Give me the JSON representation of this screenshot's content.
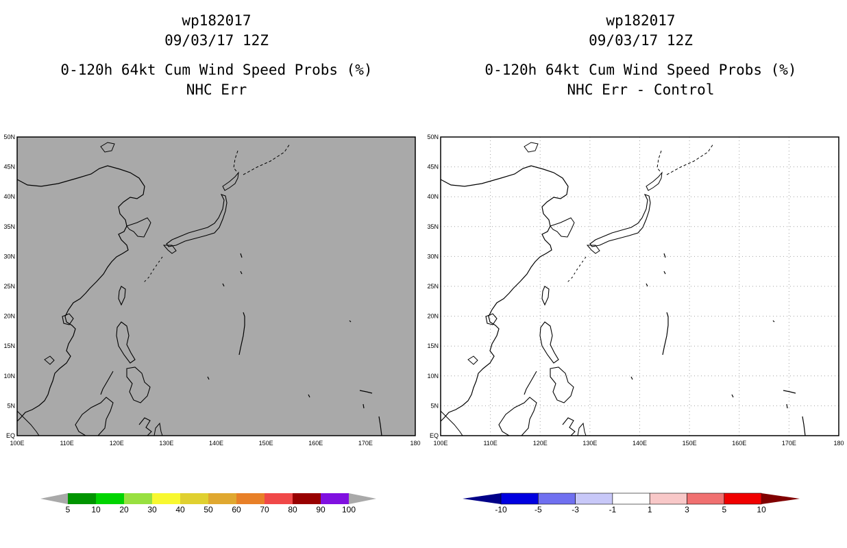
{
  "left_panel": {
    "title_lines": [
      "wp182017",
      "09/03/17 12Z",
      "0-120h 64kt Cum Wind Speed Probs (%)",
      "NHC Err"
    ],
    "background_color": "#a9a9a9"
  },
  "right_panel": {
    "title_lines": [
      "wp182017",
      "09/03/17 12Z",
      "0-120h 64kt Cum Wind Speed Probs (%)",
      "NHC Err - Control"
    ],
    "background_color": "#ffffff"
  },
  "map": {
    "lat_labels": [
      "EQ",
      "5N",
      "10N",
      "15N",
      "20N",
      "25N",
      "30N",
      "35N",
      "40N",
      "45N",
      "50N"
    ],
    "lon_labels": [
      "100E",
      "110E",
      "120E",
      "130E",
      "140E",
      "150E",
      "160E",
      "170E",
      "180"
    ],
    "lat_range": [
      0,
      50
    ],
    "lon_range": [
      100,
      180
    ]
  },
  "left_colorbar": {
    "labels": [
      "5",
      "10",
      "20",
      "30",
      "40",
      "50",
      "60",
      "70",
      "80",
      "90",
      "100"
    ],
    "colors": [
      "#009400",
      "#00d400",
      "#98e040",
      "#f8f830",
      "#e0d030",
      "#e0a830",
      "#e88028",
      "#f04848",
      "#980000",
      "#8010e0"
    ],
    "end_color": "#a9a9a9"
  },
  "right_colorbar": {
    "labels": [
      "-10",
      "-5",
      "-3",
      "-1",
      "1",
      "3",
      "5",
      "10"
    ],
    "colors": [
      "#0000e0",
      "#7070f0",
      "#c8c8f8",
      "#ffffff",
      "#f8c8c8",
      "#f07070",
      "#f00000"
    ],
    "low_color": "#000088",
    "high_color": "#800000"
  }
}
